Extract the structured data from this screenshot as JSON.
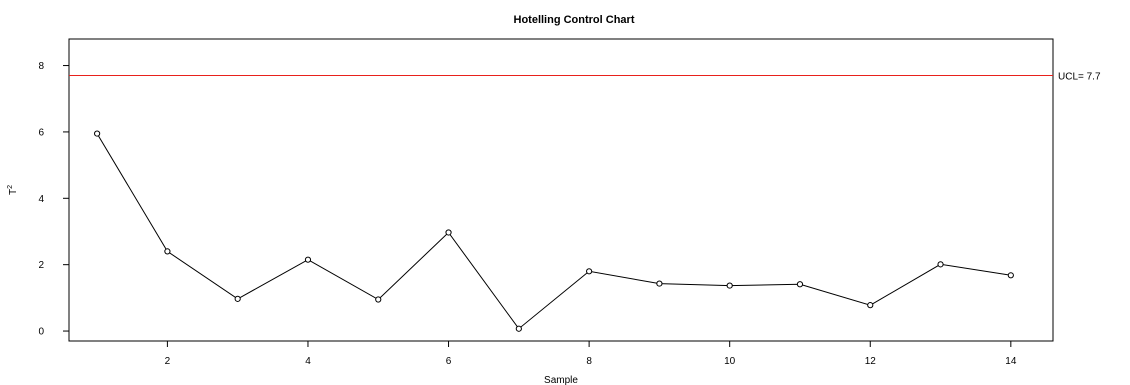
{
  "chart_data": {
    "type": "line",
    "title": "Hotelling Control Chart",
    "xlabel": "Sample",
    "ylabel_base": "T",
    "ylabel_sup": "2",
    "x": [
      1,
      2,
      3,
      4,
      5,
      6,
      7,
      8,
      9,
      10,
      11,
      12,
      13,
      14
    ],
    "values": [
      5.95,
      2.4,
      0.97,
      2.15,
      0.95,
      2.97,
      0.07,
      1.8,
      1.43,
      1.37,
      1.41,
      0.78,
      2.01,
      1.68
    ],
    "xlim": [
      0.6,
      14.6
    ],
    "ylim": [
      -0.3,
      8.8
    ],
    "xticks": [
      2,
      4,
      6,
      8,
      10,
      12,
      14
    ],
    "xtick_labels": [
      "2",
      "4",
      "6",
      "8",
      "10",
      "12",
      "14"
    ],
    "yticks": [
      0,
      2,
      4,
      6,
      8
    ],
    "ytick_labels": [
      "0",
      "2",
      "4",
      "6",
      "8"
    ],
    "ucl_value": 7.7,
    "ucl_label": "UCL= 7.7",
    "colors": {
      "series": "#000000",
      "ucl": "#e8211c",
      "axis": "#000000"
    },
    "grid": false,
    "legend": "none"
  }
}
